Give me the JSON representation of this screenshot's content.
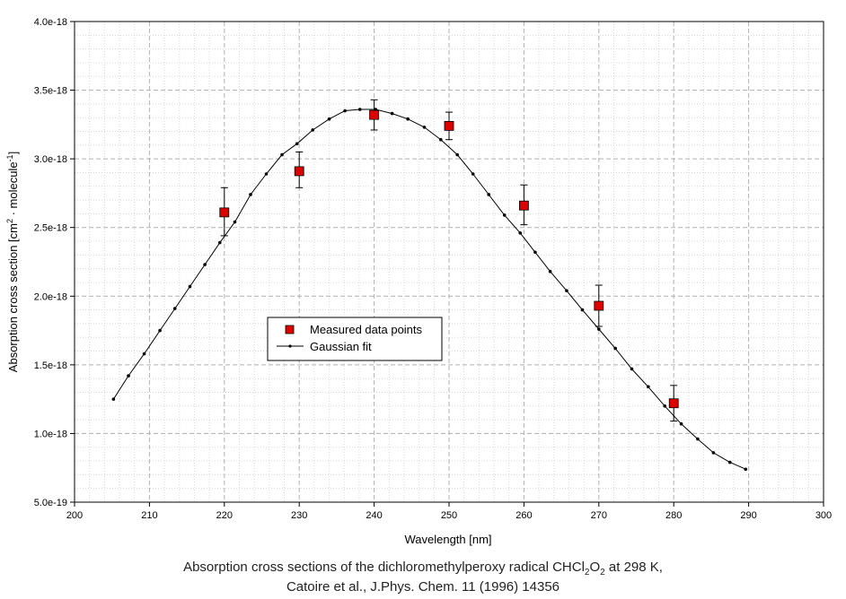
{
  "chart_data": {
    "type": "scatter",
    "title": "",
    "xlabel": "Wavelength [nm]",
    "ylabel_main": "Absorption cross section [cm",
    "ylabel_sup1": "2",
    "ylabel_mid": " · molecule",
    "ylabel_sup2": "-1",
    "ylabel_end": "]",
    "xlim": [
      200,
      300
    ],
    "ylim": [
      5e-19,
      4e-18
    ],
    "x_ticks": [
      200,
      210,
      220,
      230,
      240,
      250,
      260,
      270,
      280,
      290,
      300
    ],
    "x_tick_labels": [
      "200",
      "210",
      "220",
      "230",
      "240",
      "250",
      "260",
      "270",
      "280",
      "290",
      "300"
    ],
    "y_ticks": [
      5e-19,
      1e-18,
      1.5e-18,
      2e-18,
      2.5e-18,
      3e-18,
      3.5e-18,
      4e-18
    ],
    "y_tick_labels": [
      "5.0e-19",
      "1.0e-18",
      "1.5e-18",
      "2.0e-18",
      "2.5e-18",
      "3.0e-18",
      "3.5e-18",
      "4.0e-18"
    ],
    "grid": true,
    "legend_position": "center-left",
    "series": [
      {
        "name": "Measured data points",
        "kind": "markers-with-error-bars",
        "color": "#dd0000",
        "x": [
          220,
          230,
          240,
          250,
          260,
          270,
          280
        ],
        "y": [
          2.61e-18,
          2.91e-18,
          3.32e-18,
          3.24e-18,
          2.66e-18,
          1.93e-18,
          1.22e-18
        ],
        "err_low": [
          2.44e-18,
          2.79e-18,
          3.21e-18,
          3.14e-18,
          2.52e-18,
          1.78e-18,
          1.09e-18
        ],
        "err_high": [
          2.79e-18,
          3.05e-18,
          3.43e-18,
          3.34e-18,
          2.81e-18,
          2.08e-18,
          1.35e-18
        ]
      },
      {
        "name": "Gaussian fit",
        "kind": "line",
        "color": "#000000",
        "x": [
          205.2,
          207.2,
          209.3,
          211.4,
          213.4,
          215.4,
          217.4,
          219.4,
          221.4,
          223.5,
          225.6,
          227.7,
          229.7,
          231.8,
          234.0,
          236.1,
          238.1,
          240.2,
          242.4,
          244.5,
          246.7,
          248.9,
          251.1,
          253.2,
          255.3,
          257.4,
          259.5,
          261.5,
          263.5,
          265.7,
          267.8,
          270.0,
          272.2,
          274.4,
          276.6,
          278.8,
          281.0,
          283.2,
          285.3,
          287.5,
          289.6
        ],
        "y": [
          1.25e-18,
          1.42e-18,
          1.58e-18,
          1.75e-18,
          1.91e-18,
          2.07e-18,
          2.23e-18,
          2.39e-18,
          2.54e-18,
          2.74e-18,
          2.89e-18,
          3.03e-18,
          3.11e-18,
          3.21e-18,
          3.29e-18,
          3.35e-18,
          3.36e-18,
          3.36e-18,
          3.33e-18,
          3.29e-18,
          3.23e-18,
          3.14e-18,
          3.03e-18,
          2.89e-18,
          2.74e-18,
          2.59e-18,
          2.46e-18,
          2.32e-18,
          2.18e-18,
          2.04e-18,
          1.9e-18,
          1.76e-18,
          1.62e-18,
          1.47e-18,
          1.34e-18,
          1.2e-18,
          1.07e-18,
          9.6e-19,
          8.6e-19,
          7.9e-19,
          7.4e-19
        ]
      }
    ]
  },
  "caption": {
    "line1_pre": "Absorption cross sections of the dichloromethylperoxy radical CHCl",
    "line1_sub1": "2",
    "line1_mid": "O",
    "line1_sub2": "2",
    "line1_post": " at 298 K,",
    "line2": "Catoire et al., J.Phys. Chem. 11 (1996) 14356"
  }
}
